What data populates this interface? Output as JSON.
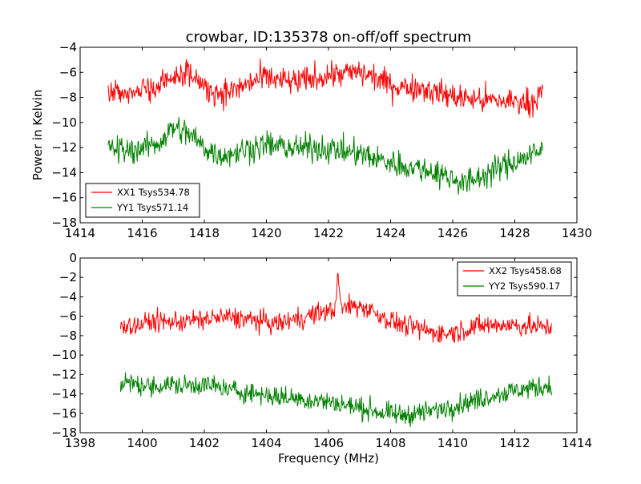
{
  "figure": {
    "title": "crowbar, ID:135378 on-off/off spectrum"
  },
  "chart_data": [
    {
      "type": "line",
      "title": "crowbar, ID:135378 on-off/off spectrum",
      "xlabel": "",
      "ylabel": "Power in Kelvin",
      "xlim": [
        1414,
        1430
      ],
      "ylim": [
        -18,
        -4
      ],
      "xticks": [
        1414,
        1416,
        1418,
        1420,
        1422,
        1424,
        1426,
        1428,
        1430
      ],
      "yticks": [
        -18,
        -16,
        -14,
        -12,
        -10,
        -8,
        -6,
        -4
      ],
      "grid": false,
      "legend_position": "lower-left",
      "series": [
        {
          "name": "XX1 Tsys534.78",
          "color": "#ff0000",
          "x": [
            1414.9,
            1415.5,
            1416.0,
            1416.5,
            1417.0,
            1417.5,
            1418.0,
            1418.5,
            1419.0,
            1419.5,
            1420.0,
            1420.5,
            1421.0,
            1421.5,
            1422.0,
            1422.5,
            1423.0,
            1423.5,
            1424.0,
            1424.5,
            1425.0,
            1425.5,
            1426.0,
            1426.5,
            1427.0,
            1427.5,
            1428.0,
            1428.5,
            1428.9
          ],
          "values": [
            -7.6,
            -7.8,
            -7.3,
            -7.0,
            -6.2,
            -5.8,
            -7.3,
            -7.6,
            -7.4,
            -6.8,
            -6.4,
            -6.7,
            -6.8,
            -6.5,
            -6.2,
            -6.1,
            -6.0,
            -6.4,
            -7.0,
            -7.2,
            -7.2,
            -7.6,
            -7.9,
            -8.1,
            -8.2,
            -8.3,
            -8.3,
            -8.4,
            -7.6
          ]
        },
        {
          "name": "YY1 Tsys571.14",
          "color": "#008000",
          "x": [
            1414.9,
            1415.5,
            1416.0,
            1416.5,
            1417.0,
            1417.5,
            1418.0,
            1418.5,
            1419.0,
            1419.5,
            1420.0,
            1420.5,
            1421.0,
            1421.5,
            1422.0,
            1422.5,
            1423.0,
            1423.5,
            1424.0,
            1424.5,
            1425.0,
            1425.5,
            1426.0,
            1426.5,
            1427.0,
            1427.5,
            1428.0,
            1428.5,
            1428.9
          ],
          "values": [
            -12.0,
            -12.3,
            -12.0,
            -11.7,
            -10.4,
            -10.9,
            -12.0,
            -12.6,
            -12.4,
            -12.0,
            -11.8,
            -11.9,
            -12.1,
            -12.0,
            -12.1,
            -12.3,
            -12.5,
            -12.9,
            -13.2,
            -13.5,
            -13.7,
            -14.0,
            -14.5,
            -14.8,
            -14.2,
            -13.6,
            -13.1,
            -12.6,
            -12.3
          ]
        }
      ]
    },
    {
      "type": "line",
      "title": "",
      "xlabel": "Frequency (MHz)",
      "ylabel": "",
      "xlim": [
        1398,
        1414
      ],
      "ylim": [
        -18,
        0
      ],
      "xticks": [
        1398,
        1400,
        1402,
        1404,
        1406,
        1408,
        1410,
        1412,
        1414
      ],
      "yticks": [
        -18,
        -16,
        -14,
        -12,
        -10,
        -8,
        -6,
        -4,
        -2,
        0
      ],
      "grid": false,
      "legend_position": "top-right",
      "series": [
        {
          "name": "XX2 Tsys458.68",
          "color": "#ff0000",
          "x": [
            1399.3,
            1399.8,
            1400.3,
            1400.8,
            1401.3,
            1401.8,
            1402.3,
            1402.8,
            1403.3,
            1403.8,
            1404.3,
            1404.8,
            1405.3,
            1405.8,
            1406.2,
            1406.3,
            1406.4,
            1406.8,
            1407.3,
            1407.8,
            1408.3,
            1408.8,
            1409.3,
            1409.8,
            1410.3,
            1410.8,
            1411.3,
            1411.8,
            1412.3,
            1412.8,
            1413.2
          ],
          "values": [
            -6.8,
            -7.0,
            -6.5,
            -6.6,
            -6.5,
            -6.4,
            -6.2,
            -6.1,
            -6.3,
            -6.5,
            -6.8,
            -6.4,
            -6.0,
            -5.6,
            -5.4,
            -1.6,
            -5.2,
            -4.9,
            -5.2,
            -6.2,
            -6.8,
            -7.2,
            -7.6,
            -7.8,
            -7.4,
            -7.0,
            -6.9,
            -6.9,
            -7.0,
            -7.1,
            -7.2
          ]
        },
        {
          "name": "YY2 Tsys590.17",
          "color": "#008000",
          "x": [
            1399.3,
            1399.8,
            1400.3,
            1400.8,
            1401.3,
            1401.8,
            1402.3,
            1402.8,
            1403.3,
            1403.8,
            1404.3,
            1404.8,
            1405.3,
            1405.8,
            1406.3,
            1406.8,
            1407.3,
            1407.8,
            1408.3,
            1408.8,
            1409.3,
            1409.8,
            1410.3,
            1410.8,
            1411.3,
            1411.8,
            1412.3,
            1412.8,
            1413.2
          ],
          "values": [
            -12.8,
            -13.0,
            -13.3,
            -13.0,
            -13.2,
            -13.0,
            -13.2,
            -13.6,
            -13.8,
            -14.0,
            -14.3,
            -14.4,
            -14.6,
            -14.7,
            -15.0,
            -15.3,
            -15.6,
            -16.0,
            -16.2,
            -16.0,
            -15.8,
            -15.4,
            -15.0,
            -14.6,
            -14.1,
            -13.8,
            -13.5,
            -13.3,
            -13.1
          ]
        }
      ]
    }
  ]
}
